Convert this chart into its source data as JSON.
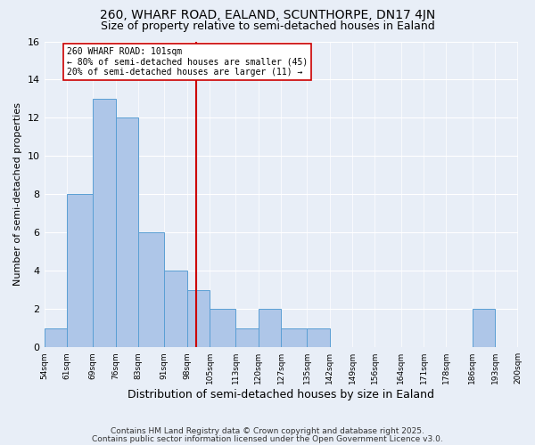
{
  "title": "260, WHARF ROAD, EALAND, SCUNTHORPE, DN17 4JN",
  "subtitle": "Size of property relative to semi-detached houses in Ealand",
  "xlabel": "Distribution of semi-detached houses by size in Ealand",
  "ylabel": "Number of semi-detached properties",
  "bins": [
    54,
    61,
    69,
    76,
    83,
    91,
    98,
    105,
    113,
    120,
    127,
    135,
    142,
    149,
    156,
    164,
    171,
    178,
    186,
    193,
    200
  ],
  "counts": [
    1,
    8,
    13,
    12,
    6,
    4,
    3,
    2,
    1,
    2,
    1,
    1,
    0,
    0,
    0,
    0,
    0,
    0,
    2,
    0
  ],
  "bar_color": "#aec6e8",
  "bar_edge_color": "#5a9fd4",
  "vline_x": 101,
  "vline_color": "#cc0000",
  "annotation_title": "260 WHARF ROAD: 101sqm",
  "annotation_line1": "← 80% of semi-detached houses are smaller (45)",
  "annotation_line2": "20% of semi-detached houses are larger (11) →",
  "annotation_box_color": "#ffffff",
  "annotation_box_edge": "#cc0000",
  "ylim": [
    0,
    16
  ],
  "yticks": [
    0,
    2,
    4,
    6,
    8,
    10,
    12,
    14,
    16
  ],
  "background_color": "#e8eef7",
  "footer1": "Contains HM Land Registry data © Crown copyright and database right 2025.",
  "footer2": "Contains public sector information licensed under the Open Government Licence v3.0.",
  "title_fontsize": 10,
  "subtitle_fontsize": 9,
  "xlabel_fontsize": 9,
  "ylabel_fontsize": 8,
  "footer_fontsize": 6.5
}
